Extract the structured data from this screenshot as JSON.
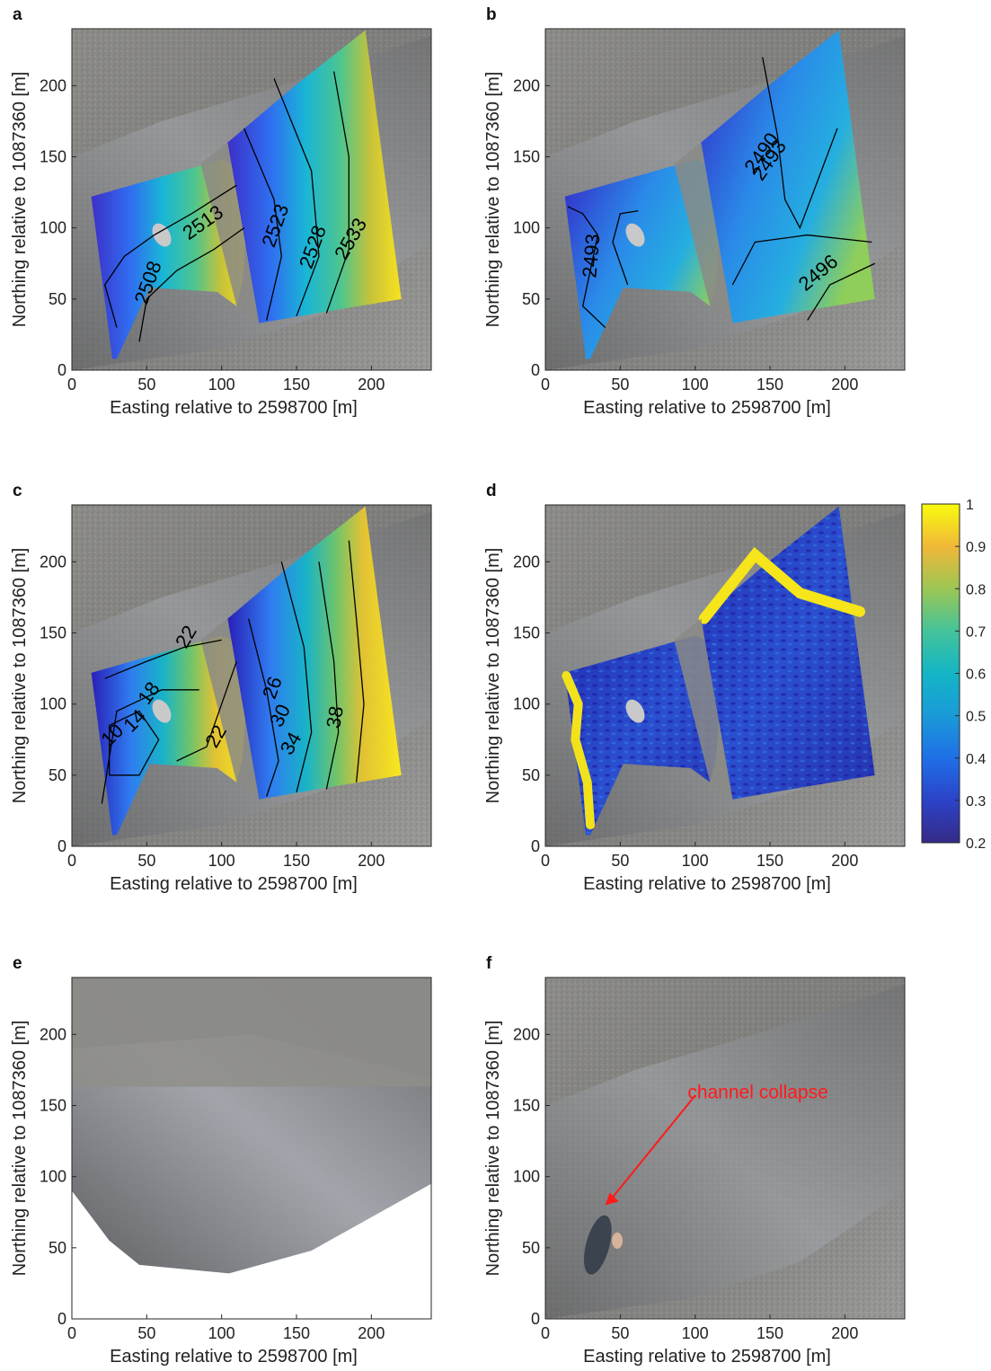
{
  "colors": {
    "accent_annotation": "#ff1a1a",
    "contour_line": "#000000",
    "colormap": "parula"
  },
  "colorbar": {
    "ticks": [
      "1",
      "0.9",
      "0.8",
      "0.7",
      "0.6",
      "0.5",
      "0.4",
      "0.3",
      "0.2"
    ]
  },
  "chart_data": [
    {
      "panel": "a",
      "type": "heatmap",
      "xlabel": "Easting relative to 2598700 [m]",
      "ylabel": "Northing relative to 1087360 [m]",
      "xticks": [
        "0",
        "50",
        "100",
        "150",
        "200"
      ],
      "yticks": [
        "0",
        "50",
        "100",
        "150",
        "200"
      ],
      "xlim": [
        0,
        240
      ],
      "ylim": [
        0,
        240
      ],
      "contour_labels": [
        "2508",
        "2513",
        "2523",
        "2528",
        "2533"
      ]
    },
    {
      "panel": "b",
      "type": "heatmap",
      "xlabel": "Easting relative to 2598700 [m]",
      "ylabel": "Northing relative to 1087360 [m]",
      "xticks": [
        "0",
        "50",
        "100",
        "150",
        "200"
      ],
      "yticks": [
        "0",
        "50",
        "100",
        "150",
        "200"
      ],
      "xlim": [
        0,
        240
      ],
      "ylim": [
        0,
        240
      ],
      "contour_labels": [
        "2493",
        "2490",
        "2493",
        "2496"
      ]
    },
    {
      "panel": "c",
      "type": "heatmap",
      "xlabel": "Easting relative to 2598700 [m]",
      "ylabel": "Northing relative to 1087360 [m]",
      "xticks": [
        "0",
        "50",
        "100",
        "150",
        "200"
      ],
      "yticks": [
        "0",
        "50",
        "100",
        "150",
        "200"
      ],
      "xlim": [
        0,
        240
      ],
      "ylim": [
        0,
        240
      ],
      "contour_labels": [
        "10",
        "14",
        "18",
        "22",
        "22",
        "26",
        "30",
        "34",
        "38"
      ]
    },
    {
      "panel": "d",
      "type": "heatmap",
      "xlabel": "Easting relative to 2598700 [m]",
      "ylabel": "Northing relative to 1087360 [m]",
      "xticks": [
        "0",
        "50",
        "100",
        "150",
        "200"
      ],
      "yticks": [
        "0",
        "50",
        "100",
        "150",
        "200"
      ],
      "xlim": [
        0,
        240
      ],
      "ylim": [
        0,
        240
      ],
      "colorbar_range": [
        0.2,
        1
      ]
    },
    {
      "panel": "e",
      "type": "heatmap",
      "xlabel": "Easting relative to 2598700 [m]",
      "ylabel": "Northing relative to 1087360 [m]",
      "xticks": [
        "0",
        "50",
        "100",
        "150",
        "200"
      ],
      "yticks": [
        "0",
        "50",
        "100",
        "150",
        "200"
      ],
      "xlim": [
        0,
        240
      ],
      "ylim": [
        0,
        240
      ]
    },
    {
      "panel": "f",
      "type": "heatmap",
      "xlabel": "Easting relative to 2598700 [m]",
      "ylabel": "Northing relative to 1087360 [m]",
      "xticks": [
        "0",
        "50",
        "100",
        "150",
        "200"
      ],
      "yticks": [
        "0",
        "50",
        "100",
        "150",
        "200"
      ],
      "xlim": [
        0,
        240
      ],
      "ylim": [
        0,
        240
      ],
      "annotation": {
        "text": "channel collapse",
        "x": 40,
        "y": 80
      }
    }
  ]
}
